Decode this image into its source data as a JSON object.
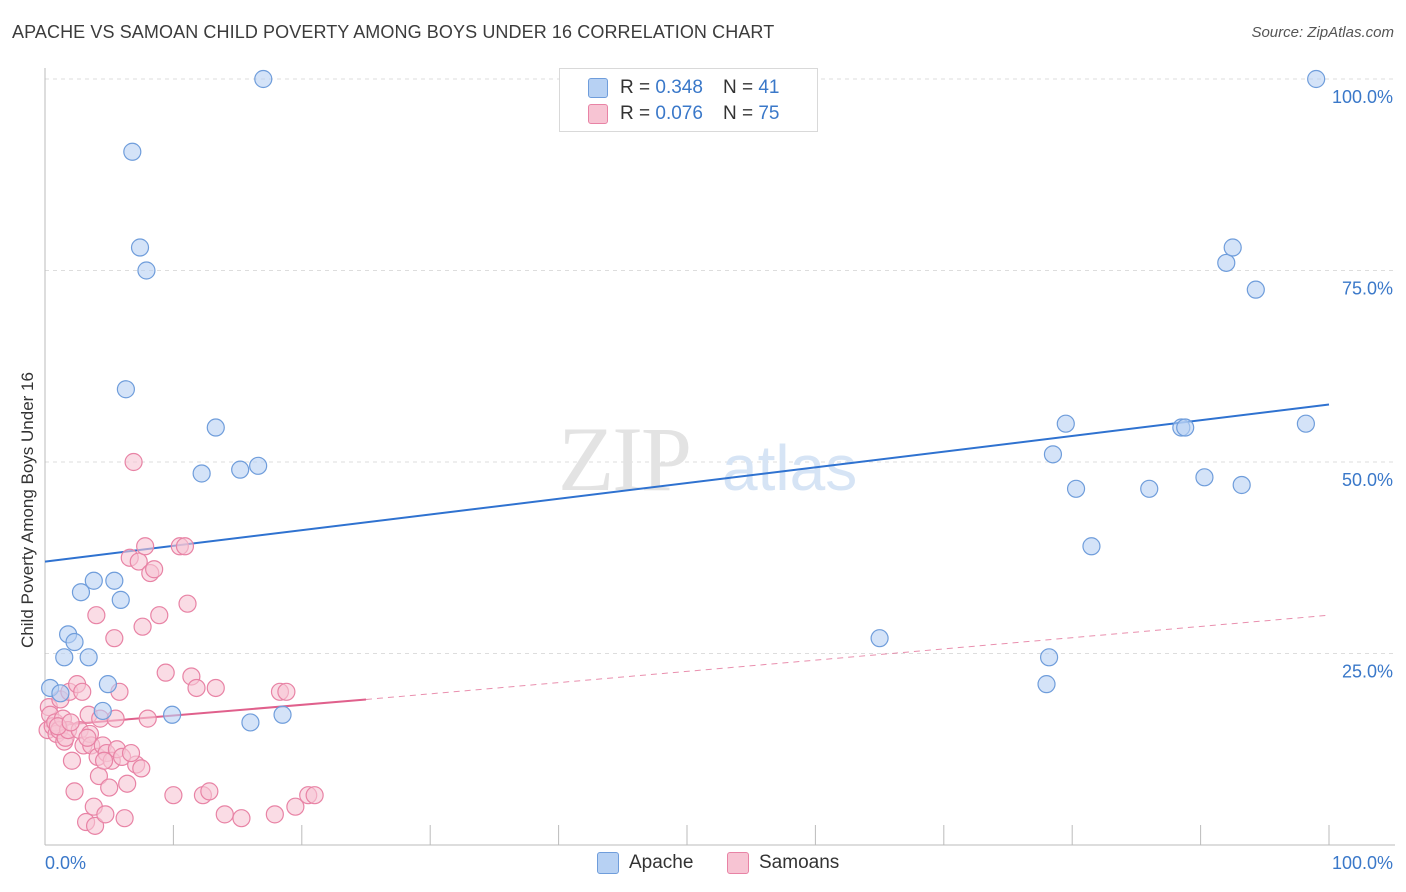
{
  "title": "APACHE VS SAMOAN CHILD POVERTY AMONG BOYS UNDER 16 CORRELATION CHART",
  "source": "Source: ZipAtlas.com",
  "watermark": {
    "zip": "ZIP",
    "atlas": "atlas"
  },
  "legend": {
    "r_label": "R =",
    "n_label": "N =",
    "rows": [
      {
        "r": "0.348",
        "n": "41"
      },
      {
        "r": "0.076",
        "n": "75"
      }
    ]
  },
  "bottom_legend": [
    "Apache",
    "Samoans"
  ],
  "colors": {
    "apache_fill": "#b7d1f3",
    "apache_stroke": "#6f9ddb",
    "apache_line": "#2f72d0",
    "samoan_fill": "#f7c4d3",
    "samoan_stroke": "#e883a5",
    "samoan_line": "#e0608c",
    "grid": "#dddddd",
    "tick_label": "#3a78c9"
  },
  "chart_data": {
    "type": "scatter",
    "title": "APACHE VS SAMOAN CHILD POVERTY AMONG BOYS UNDER 16 CORRELATION CHART",
    "xlabel": "",
    "ylabel": "Child Poverty Among Boys Under 16",
    "xlim": [
      0,
      100
    ],
    "ylim": [
      0,
      100
    ],
    "x_tick_labels": [
      "0.0%",
      "100.0%"
    ],
    "y_ticks": [
      25,
      50,
      75,
      100
    ],
    "y_tick_labels": [
      "25.0%",
      "50.0%",
      "75.0%",
      "100.0%"
    ],
    "legend_position": "top-center",
    "series": [
      {
        "name": "Apache",
        "R": 0.348,
        "N": 41,
        "trend": {
          "x": [
            0,
            100
          ],
          "y": [
            37.0,
            57.5
          ],
          "style": "solid"
        },
        "points": [
          [
            0.4,
            20.5
          ],
          [
            1.2,
            19.8
          ],
          [
            1.5,
            24.5
          ],
          [
            1.8,
            27.5
          ],
          [
            2.3,
            26.5
          ],
          [
            2.8,
            33.0
          ],
          [
            3.4,
            24.5
          ],
          [
            3.8,
            34.5
          ],
          [
            4.5,
            17.5
          ],
          [
            4.9,
            21.0
          ],
          [
            5.4,
            34.5
          ],
          [
            5.9,
            32.0
          ],
          [
            6.3,
            59.5
          ],
          [
            6.8,
            90.5
          ],
          [
            7.4,
            78.0
          ],
          [
            7.9,
            75.0
          ],
          [
            9.9,
            17.0
          ],
          [
            12.2,
            48.5
          ],
          [
            13.3,
            54.5
          ],
          [
            15.2,
            49.0
          ],
          [
            16.0,
            16.0
          ],
          [
            16.6,
            49.5
          ],
          [
            17.0,
            100.0
          ],
          [
            18.5,
            17.0
          ],
          [
            65.0,
            27.0
          ],
          [
            78.0,
            21.0
          ],
          [
            78.2,
            24.5
          ],
          [
            78.5,
            51.0
          ],
          [
            79.5,
            55.0
          ],
          [
            80.3,
            46.5
          ],
          [
            81.5,
            39.0
          ],
          [
            86.0,
            46.5
          ],
          [
            88.5,
            54.5
          ],
          [
            88.8,
            54.5
          ],
          [
            90.3,
            48.0
          ],
          [
            92.0,
            76.0
          ],
          [
            92.5,
            78.0
          ],
          [
            93.2,
            47.0
          ],
          [
            94.3,
            72.5
          ],
          [
            98.2,
            55.0
          ],
          [
            99.0,
            100.0
          ]
        ]
      },
      {
        "name": "Samoans",
        "R": 0.076,
        "N": 75,
        "trend": {
          "x": [
            0,
            25
          ],
          "y": [
            15.5,
            19.0
          ],
          "style": "solid",
          "extended": {
            "x": [
              25,
              100
            ],
            "y": [
              19.0,
              30.0
            ],
            "style": "dashed"
          }
        },
        "points": [
          [
            0.2,
            15.0
          ],
          [
            0.3,
            18.0
          ],
          [
            0.4,
            17.0
          ],
          [
            0.6,
            15.5
          ],
          [
            0.8,
            16.0
          ],
          [
            0.9,
            14.5
          ],
          [
            1.1,
            15.0
          ],
          [
            1.2,
            19.0
          ],
          [
            1.4,
            16.5
          ],
          [
            1.5,
            13.5
          ],
          [
            1.6,
            14.0
          ],
          [
            1.8,
            15.0
          ],
          [
            1.9,
            20.0
          ],
          [
            2.1,
            11.0
          ],
          [
            2.3,
            7.0
          ],
          [
            2.5,
            21.0
          ],
          [
            2.7,
            15.0
          ],
          [
            2.9,
            20.0
          ],
          [
            3.0,
            13.0
          ],
          [
            3.2,
            3.0
          ],
          [
            3.4,
            17.0
          ],
          [
            3.5,
            14.5
          ],
          [
            3.6,
            13.0
          ],
          [
            3.8,
            5.0
          ],
          [
            3.9,
            2.5
          ],
          [
            4.0,
            30.0
          ],
          [
            4.1,
            11.5
          ],
          [
            4.2,
            9.0
          ],
          [
            4.3,
            16.5
          ],
          [
            4.5,
            13.0
          ],
          [
            4.7,
            4.0
          ],
          [
            4.8,
            12.0
          ],
          [
            5.0,
            7.5
          ],
          [
            5.2,
            11.0
          ],
          [
            5.4,
            27.0
          ],
          [
            5.6,
            12.5
          ],
          [
            5.8,
            20.0
          ],
          [
            6.0,
            11.5
          ],
          [
            6.2,
            3.5
          ],
          [
            6.4,
            8.0
          ],
          [
            6.6,
            37.5
          ],
          [
            6.9,
            50.0
          ],
          [
            7.1,
            10.5
          ],
          [
            7.3,
            37.0
          ],
          [
            7.6,
            28.5
          ],
          [
            7.8,
            39.0
          ],
          [
            8.0,
            16.5
          ],
          [
            8.2,
            35.5
          ],
          [
            8.5,
            36.0
          ],
          [
            8.9,
            30.0
          ],
          [
            9.4,
            22.5
          ],
          [
            10.0,
            6.5
          ],
          [
            10.5,
            39.0
          ],
          [
            10.9,
            39.0
          ],
          [
            11.1,
            31.5
          ],
          [
            11.4,
            22.0
          ],
          [
            11.8,
            20.5
          ],
          [
            12.3,
            6.5
          ],
          [
            12.8,
            7.0
          ],
          [
            13.3,
            20.5
          ],
          [
            14.0,
            4.0
          ],
          [
            15.3,
            3.5
          ],
          [
            17.9,
            4.0
          ],
          [
            18.3,
            20.0
          ],
          [
            18.8,
            20.0
          ],
          [
            19.5,
            5.0
          ],
          [
            20.5,
            6.5
          ],
          [
            21.0,
            6.5
          ],
          [
            1.0,
            15.5
          ],
          [
            2.0,
            16.0
          ],
          [
            3.3,
            14.0
          ],
          [
            4.6,
            11.0
          ],
          [
            5.5,
            16.5
          ],
          [
            6.7,
            12.0
          ],
          [
            7.5,
            10.0
          ]
        ]
      }
    ]
  }
}
